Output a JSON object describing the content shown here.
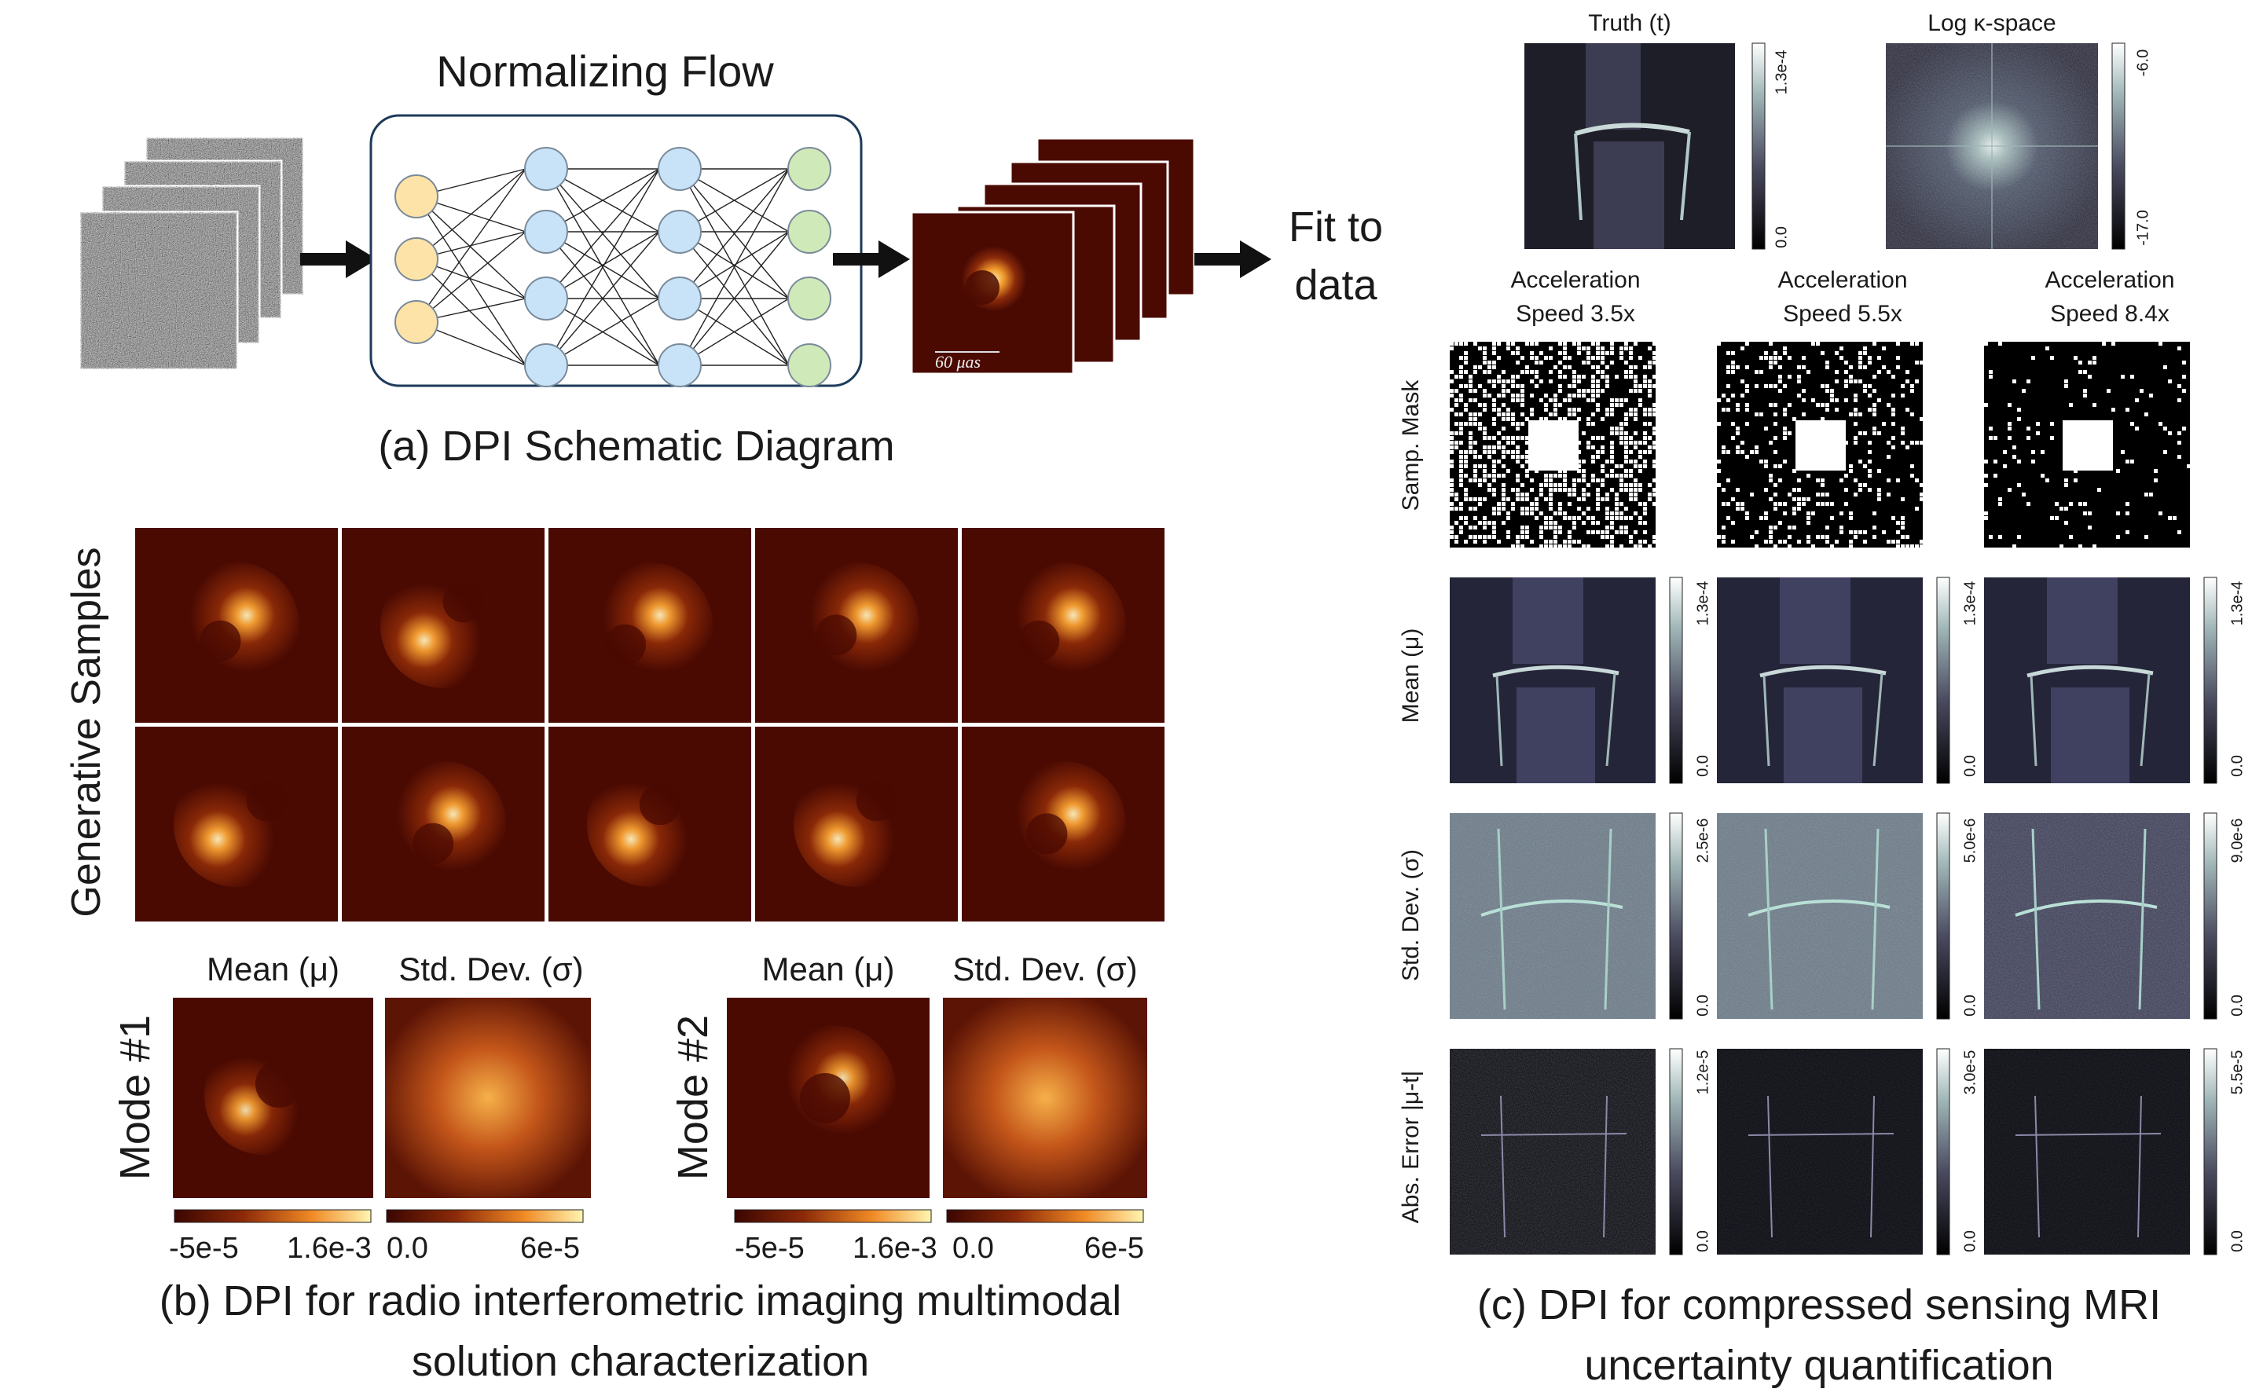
{
  "panel_a": {
    "flow_title": "Normalizing Flow",
    "fit_line1": "Fit to",
    "fit_line2": "data",
    "scale_bar": "60 μas",
    "caption": "(a) DPI Schematic Diagram",
    "network_layers": [
      3,
      4,
      4,
      4
    ],
    "layer_colors": [
      "#fde3a7",
      "#c8e3f7",
      "#c8e3f7",
      "#cfe9b8"
    ]
  },
  "panel_b": {
    "generative_label": "Generative Samples",
    "mean_label": "Mean (μ)",
    "std_label": "Std. Dev. (σ)",
    "mode1_label": "Mode #1",
    "mode2_label": "Mode #2",
    "cbar_mean_min": "-5e-5",
    "cbar_mean_max": "1.6e-3",
    "cbar_std_min": "0.0",
    "cbar_std_max": "6e-5",
    "caption_line1": "(b) DPI for radio interferometric imaging multimodal",
    "caption_line2": "solution characterization"
  },
  "panel_c": {
    "truth_title": "Truth (t)",
    "kspace_title": "Log κ-space",
    "truth_cbar_max": "1.3e-4",
    "truth_cbar_min": "0.0",
    "kspace_cbar_max": "-6.0",
    "kspace_cbar_min": "-17.0",
    "columns": [
      {
        "line1": "Acceleration",
        "line2": "Speed 3.5x"
      },
      {
        "line1": "Acceleration",
        "line2": "Speed 5.5x"
      },
      {
        "line1": "Acceleration",
        "line2": "Speed 8.4x"
      }
    ],
    "row_labels": [
      "Samp. Mask",
      "Mean (μ)",
      "Std. Dev. (σ)",
      "Abs. Error |μ-t|"
    ],
    "mean_cbar": {
      "max": [
        "1.3e-4",
        "1.3e-4",
        "1.3e-4"
      ],
      "min": "0.0"
    },
    "std_cbar": {
      "max": [
        "2.5e-6",
        "5.0e-6",
        "9.0e-6"
      ],
      "min": "0.0"
    },
    "err_cbar": {
      "max": [
        "1.2e-5",
        "3.0e-5",
        "5.5e-5"
      ],
      "min": "0.0"
    },
    "caption_line1": "(c) DPI for compressed sensing MRI",
    "caption_line2": "uncertainty quantification"
  }
}
